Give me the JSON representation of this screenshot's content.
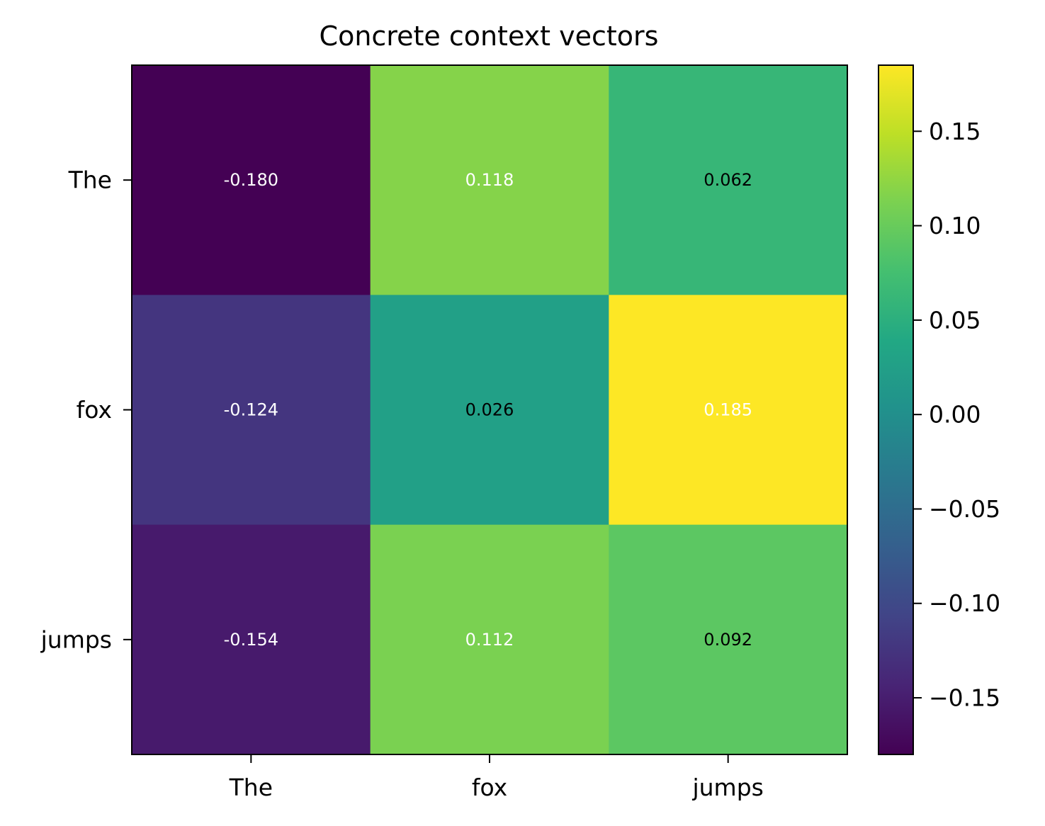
{
  "chart_data": {
    "type": "heatmap",
    "title": "Concrete context vectors",
    "xlabel": "",
    "ylabel": "",
    "x_categories": [
      "The",
      "fox",
      "jumps"
    ],
    "y_categories": [
      "The",
      "fox",
      "jumps"
    ],
    "values": [
      [
        -0.18,
        0.118,
        0.062
      ],
      [
        -0.124,
        0.026,
        0.185
      ],
      [
        -0.154,
        0.112,
        0.092
      ]
    ],
    "cell_labels": [
      [
        "-0.180",
        "0.118",
        "0.062"
      ],
      [
        "-0.124",
        "0.026",
        "0.185"
      ],
      [
        "-0.154",
        "0.112",
        "0.092"
      ]
    ],
    "cell_label_colors": [
      [
        "#ffffff",
        "#ffffff",
        "#000000"
      ],
      [
        "#ffffff",
        "#000000",
        "#ffffff"
      ],
      [
        "#ffffff",
        "#ffffff",
        "#000000"
      ]
    ],
    "colormap": "viridis",
    "vmin": -0.18,
    "vmax": 0.185,
    "colorbar": {
      "ticks": [
        0.15,
        0.1,
        0.05,
        0.0,
        -0.05,
        -0.1,
        -0.15
      ],
      "tick_labels": [
        "0.15",
        "0.10",
        "0.05",
        "0.00",
        "−0.05",
        "−0.10",
        "−0.15"
      ]
    },
    "grid": false,
    "legend": "none"
  }
}
